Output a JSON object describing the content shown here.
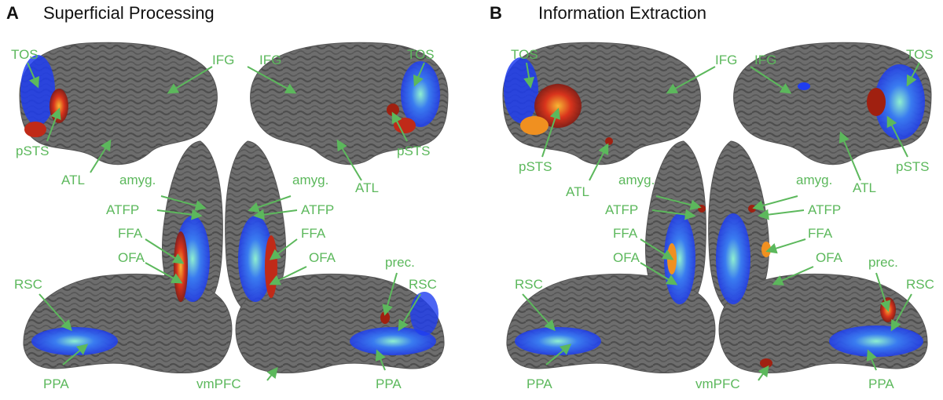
{
  "panels": [
    {
      "letter": "A",
      "title": "Superficial Processing",
      "labels": {
        "tos_left": "TOS",
        "tos_right": "TOS",
        "ifg_left": "IFG",
        "ifg_right": "IFG",
        "psts_left": "pSTS",
        "psts_right": "pSTS",
        "atl_left": "ATL",
        "atl_right": "ATL",
        "amyg_left": "amyg.",
        "amyg_right": "amyg.",
        "atfp_left": "ATFP",
        "atfp_right": "ATFP",
        "ffa_left": "FFA",
        "ffa_right": "FFA",
        "ofa_left": "OFA",
        "ofa_right": "OFA",
        "rsc_left": "RSC",
        "rsc_right": "RSC",
        "prec": "prec.",
        "ppa_left": "PPA",
        "ppa_right": "PPA",
        "vmpfc": "vmPFC"
      }
    },
    {
      "letter": "B",
      "title": "Information Extraction",
      "labels": {
        "tos_left": "TOS",
        "tos_right": "TOS",
        "ifg_left": "IFG",
        "ifg_right": "IFG",
        "psts_left": "pSTS",
        "psts_right": "pSTS",
        "atl_left": "ATL",
        "atl_right": "ATL",
        "amyg_left": "amyg.",
        "amyg_right": "amyg.",
        "atfp_left": "ATFP",
        "atfp_right": "ATFP",
        "ffa_left": "FFA",
        "ffa_right": "FFA",
        "ofa_left": "OFA",
        "ofa_right": "OFA",
        "rsc_left": "RSC",
        "rsc_right": "RSC",
        "prec": "prec.",
        "ppa_left": "PPA",
        "ppa_right": "PPA",
        "vmpfc": "vmPFC"
      }
    }
  ],
  "colors": {
    "label": "#5cb85c",
    "cortex": "#6b6b6b",
    "sulcus": "#4a4a4a",
    "activation_warm": "#d9341c",
    "activation_core": "#f5a623",
    "activation_cool": "#1f3df0",
    "activation_cool_core": "#7fe0c8"
  }
}
